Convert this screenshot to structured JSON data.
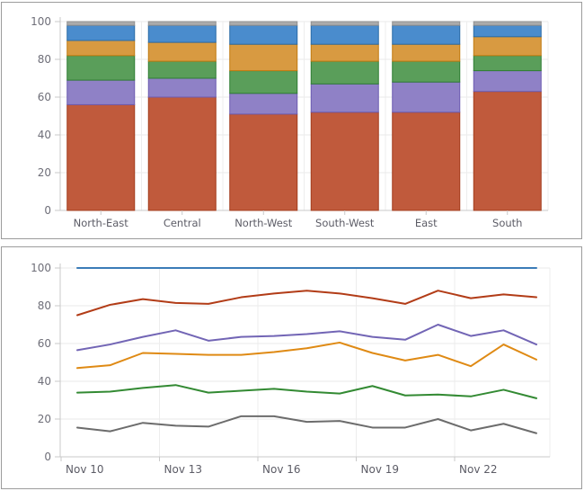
{
  "chart_data": [
    {
      "type": "bar",
      "stacked": true,
      "stacking": "percent",
      "title": "",
      "xlabel": "",
      "ylabel": "",
      "ylim": [
        0,
        100
      ],
      "yticks": [
        0,
        20,
        40,
        60,
        80,
        100
      ],
      "grid": true,
      "legend": "none",
      "categories": [
        "North-East",
        "Central",
        "North-West",
        "South-West",
        "East",
        "South"
      ],
      "series": [
        {
          "name": "rust-series",
          "color": "#c05a3c",
          "border": "#a33c1d",
          "values": [
            56,
            60,
            51,
            52,
            52,
            63
          ]
        },
        {
          "name": "purple-series",
          "color": "#8f81c6",
          "border": "#6c5bb0",
          "values": [
            13,
            10,
            11,
            15,
            16,
            11
          ]
        },
        {
          "name": "green-series",
          "color": "#5a9e5a",
          "border": "#2e7d32",
          "values": [
            13,
            9,
            12,
            12,
            11,
            8
          ]
        },
        {
          "name": "orange-series",
          "color": "#d89a41",
          "border": "#c07a10",
          "values": [
            8,
            10,
            14,
            9,
            9,
            10
          ]
        },
        {
          "name": "blue-series",
          "color": "#4a8ccd",
          "border": "#2a6ba6",
          "values": [
            8,
            9,
            10,
            10,
            10,
            6
          ]
        },
        {
          "name": "gray-series",
          "color": "#ababab",
          "border": "#8f8f8f",
          "values": [
            2,
            2,
            2,
            2,
            2,
            2
          ]
        }
      ]
    },
    {
      "type": "line",
      "title": "",
      "xlabel": "",
      "ylabel": "",
      "ylim": [
        0,
        100
      ],
      "yticks": [
        0,
        20,
        40,
        60,
        80,
        100
      ],
      "grid": true,
      "legend": "none",
      "x": [
        "Nov 10",
        "Nov 11",
        "Nov 12",
        "Nov 13",
        "Nov 14",
        "Nov 15",
        "Nov 16",
        "Nov 17",
        "Nov 18",
        "Nov 19",
        "Nov 20",
        "Nov 21",
        "Nov 22",
        "Nov 23",
        "Nov 24"
      ],
      "x_tick_labels": [
        "Nov 10",
        "Nov 13",
        "Nov 16",
        "Nov 19",
        "Nov 22"
      ],
      "series": [
        {
          "name": "blue-line",
          "color": "#3b7cb8",
          "values": [
            100,
            100,
            100,
            100,
            100,
            100,
            100,
            100,
            100,
            100,
            100,
            100,
            100,
            100,
            100
          ]
        },
        {
          "name": "red-line",
          "color": "#b23c17",
          "values": [
            75,
            80.5,
            83.5,
            81.5,
            81,
            84.5,
            86.5,
            88,
            86.5,
            84,
            81,
            88,
            84,
            86,
            84.5
          ]
        },
        {
          "name": "purple-line",
          "color": "#7265b5",
          "values": [
            56.5,
            59.5,
            63.5,
            67,
            61.5,
            63.5,
            64,
            65,
            66.5,
            63.5,
            62,
            70,
            64,
            67,
            59.5
          ]
        },
        {
          "name": "orange-line",
          "color": "#df8a14",
          "values": [
            47,
            48.5,
            55,
            54.5,
            54,
            54,
            55.5,
            57.5,
            60.5,
            55,
            51,
            54,
            48,
            59.5,
            51.5
          ]
        },
        {
          "name": "green-line",
          "color": "#338a33",
          "values": [
            34,
            34.5,
            36.5,
            38,
            34,
            35,
            36,
            34.5,
            33.5,
            37.5,
            32.5,
            33,
            32,
            35.5,
            31
          ]
        },
        {
          "name": "gray-line",
          "color": "#6c6c6c",
          "values": [
            15.5,
            13.5,
            18,
            16.5,
            16,
            21.5,
            21.5,
            18.5,
            19,
            15.5,
            15.5,
            20,
            14,
            17.5,
            12.5
          ]
        }
      ]
    }
  ]
}
